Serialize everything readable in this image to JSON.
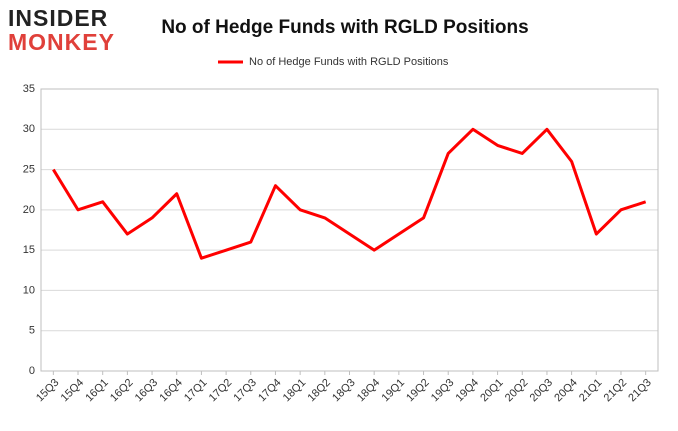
{
  "logo": {
    "line1": "INSIDER",
    "line2": "MONKEY"
  },
  "chart_data": {
    "type": "line",
    "title": "No of Hedge Funds with RGLD Positions",
    "categories": [
      "15Q3",
      "15Q4",
      "16Q1",
      "16Q2",
      "16Q3",
      "16Q4",
      "17Q1",
      "17Q2",
      "17Q3",
      "17Q4",
      "18Q1",
      "18Q2",
      "18Q3",
      "18Q4",
      "19Q1",
      "19Q2",
      "19Q3",
      "19Q4",
      "20Q1",
      "20Q2",
      "20Q3",
      "20Q4",
      "21Q1",
      "21Q2",
      "21Q3"
    ],
    "series": [
      {
        "name": "No of Hedge Funds with RGLD Positions",
        "color": "#ff0000",
        "values": [
          25,
          20,
          21,
          17,
          19,
          22,
          14,
          15,
          16,
          23,
          20,
          19,
          17,
          15,
          17,
          19,
          27,
          30,
          28,
          27,
          30,
          26,
          17,
          20,
          21
        ]
      }
    ],
    "ylim": [
      0,
      35
    ],
    "yticks": [
      0,
      5,
      10,
      15,
      20,
      25,
      30,
      35
    ],
    "grid": true,
    "legend": "top"
  }
}
